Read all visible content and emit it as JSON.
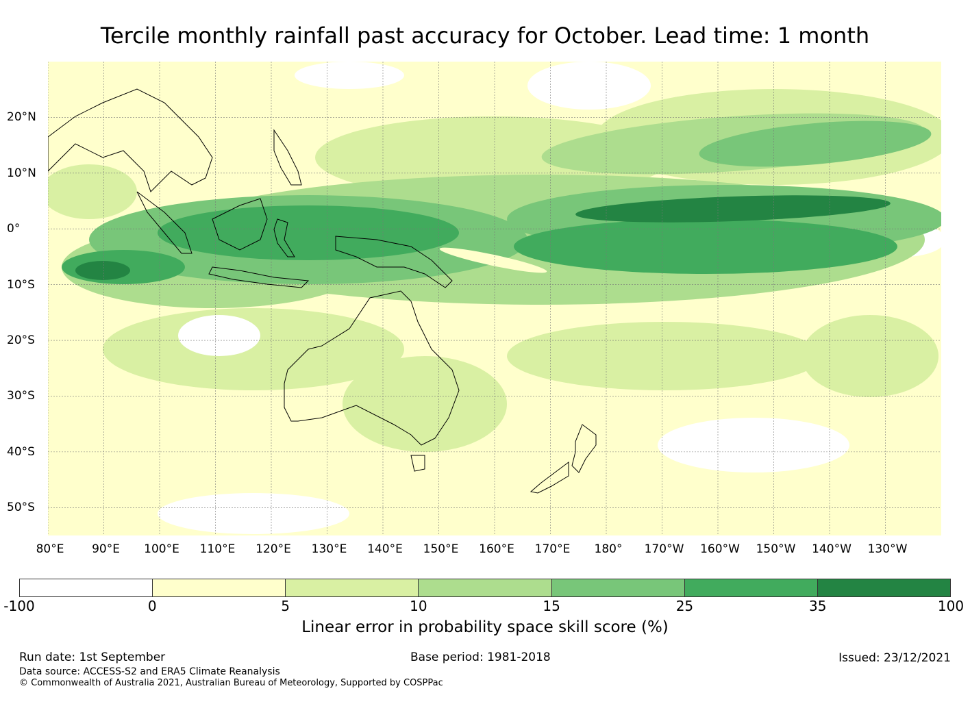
{
  "title": "Tercile monthly rainfall past accuracy for October. Lead time: 1 month",
  "map": {
    "extent": {
      "lon_min": 80,
      "lon_max": 240,
      "lat_min": -55,
      "lat_max": 30
    },
    "longitude_labels": [
      {
        "lon": 80,
        "label": "80°E"
      },
      {
        "lon": 90,
        "label": "90°E"
      },
      {
        "lon": 100,
        "label": "100°E"
      },
      {
        "lon": 110,
        "label": "110°E"
      },
      {
        "lon": 120,
        "label": "120°E"
      },
      {
        "lon": 130,
        "label": "130°E"
      },
      {
        "lon": 140,
        "label": "140°E"
      },
      {
        "lon": 150,
        "label": "150°E"
      },
      {
        "lon": 160,
        "label": "160°E"
      },
      {
        "lon": 170,
        "label": "170°E"
      },
      {
        "lon": 180,
        "label": "180°"
      },
      {
        "lon": 190,
        "label": "170°W"
      },
      {
        "lon": 200,
        "label": "160°W"
      },
      {
        "lon": 210,
        "label": "150°W"
      },
      {
        "lon": 220,
        "label": "140°W"
      },
      {
        "lon": 230,
        "label": "130°W"
      }
    ],
    "latitude_labels": [
      {
        "lat": 20,
        "label": "20°N"
      },
      {
        "lat": 10,
        "label": "10°N"
      },
      {
        "lat": 0,
        "label": "0°"
      },
      {
        "lat": -10,
        "label": "10°S"
      },
      {
        "lat": -20,
        "label": "20°S"
      },
      {
        "lat": -30,
        "label": "30°S"
      },
      {
        "lat": -40,
        "label": "40°S"
      },
      {
        "lat": -50,
        "label": "50°S"
      }
    ],
    "gridlines": true
  },
  "colorbar": {
    "ticks": [
      "-100",
      "0",
      "5",
      "10",
      "15",
      "25",
      "35",
      "100"
    ],
    "colors": [
      "#ffffff",
      "#ffffcc",
      "#d9f0a3",
      "#addd8e",
      "#78c679",
      "#41ab5d",
      "#238443"
    ],
    "label": "Linear error in probability space skill score (%)"
  },
  "footer": {
    "run_date": "Run date: 1st September",
    "base_period": "Base period: 1981-2018",
    "issued": "Issued: 23/12/2021",
    "data_source": "Data source: ACCESS-S2 and ERA5 Climate Reanalysis",
    "copyright": "© Commonwealth of Australia 2021, Australian Bureau of Meteorology, Supported by COSPPac"
  }
}
